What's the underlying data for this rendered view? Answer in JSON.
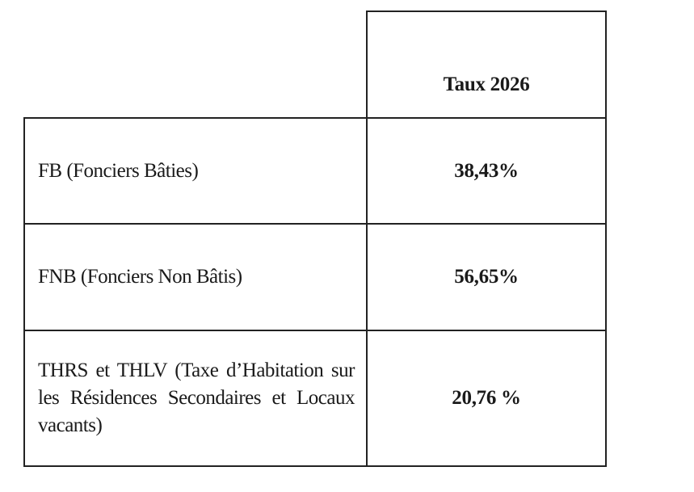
{
  "table": {
    "header": [
      "Taux 2026"
    ],
    "rows": [
      [
        "FB (Fonciers Bâties)",
        "38,43%"
      ],
      [
        "FNB (Fonciers Non Bâtis)",
        "56,65%"
      ],
      [
        "THRS et THLV (Taxe d’Habitation sur les Résidences Secondaires et Locaux vacants)",
        "20,76 %"
      ]
    ]
  }
}
